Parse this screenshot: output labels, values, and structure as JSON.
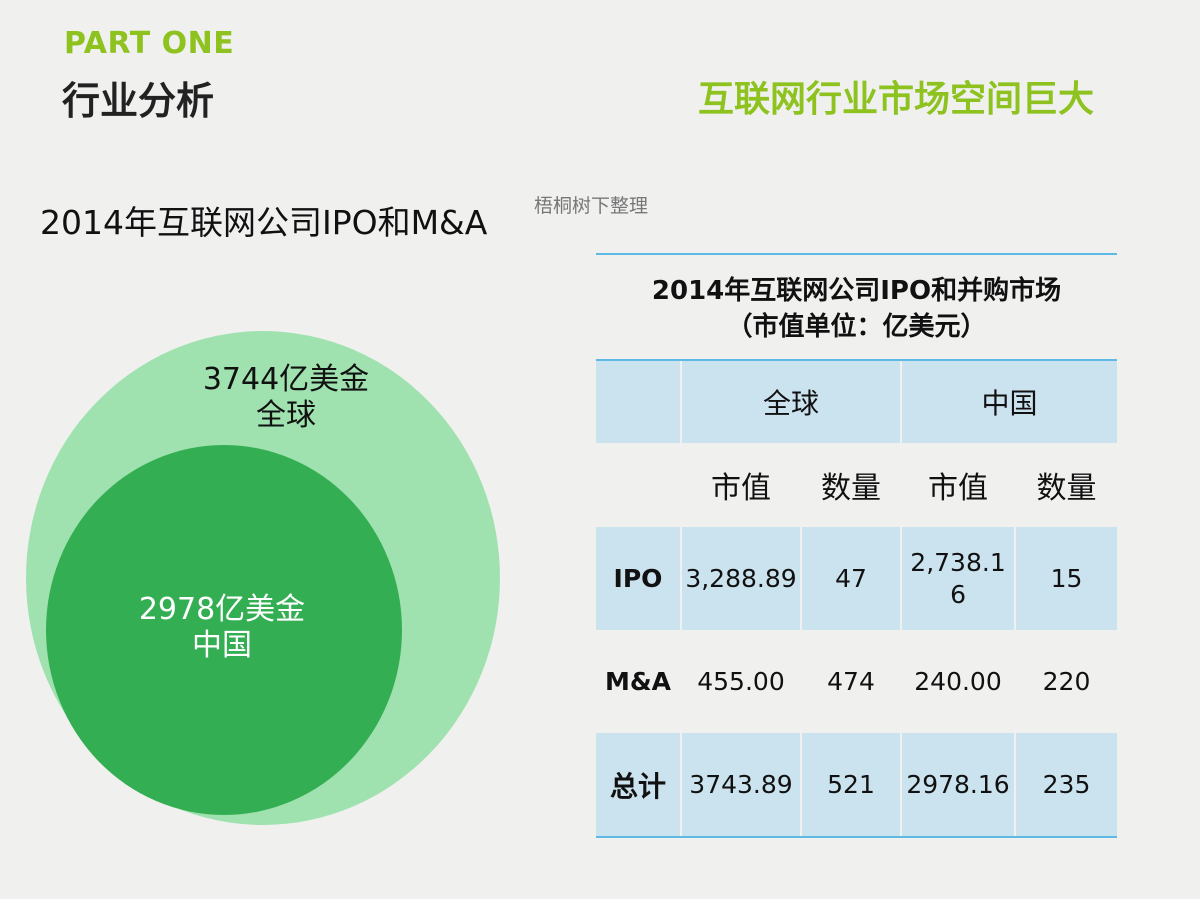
{
  "header": {
    "part_label": "PART ONE",
    "section_title": "行业分析",
    "headline": "互联网行业市场空间巨大"
  },
  "subtitle": "2014年互联网公司IPO和M&A",
  "watermark": "梧桐树下整理",
  "bubble_chart": {
    "outer": {
      "value_label": "3744亿美金",
      "name": "全球"
    },
    "inner": {
      "value_label": "2978亿美金",
      "name": "中国"
    }
  },
  "chart_data": {
    "type": "table",
    "title_line1": "2014年互联网公司IPO和并购市场",
    "title_line2": "（市值单位：亿美元）",
    "regions": [
      "全球",
      "中国"
    ],
    "columns": [
      "市值",
      "数量",
      "市值",
      "数量"
    ],
    "rows": [
      {
        "label": "IPO",
        "values": [
          "3,288.89",
          "47",
          "2,738.16",
          "15"
        ]
      },
      {
        "label": "M&A",
        "values": [
          "455.00",
          "474",
          "240.00",
          "220"
        ]
      },
      {
        "label": "总计",
        "values": [
          "3743.89",
          "521",
          "2978.16",
          "235"
        ]
      }
    ]
  },
  "colors": {
    "accent_green": "#8dc21f",
    "outer_circle": "#a0e2af",
    "inner_circle": "#34ae53",
    "table_shade": "#cbe3ef",
    "table_rule": "#5fb9e5"
  }
}
